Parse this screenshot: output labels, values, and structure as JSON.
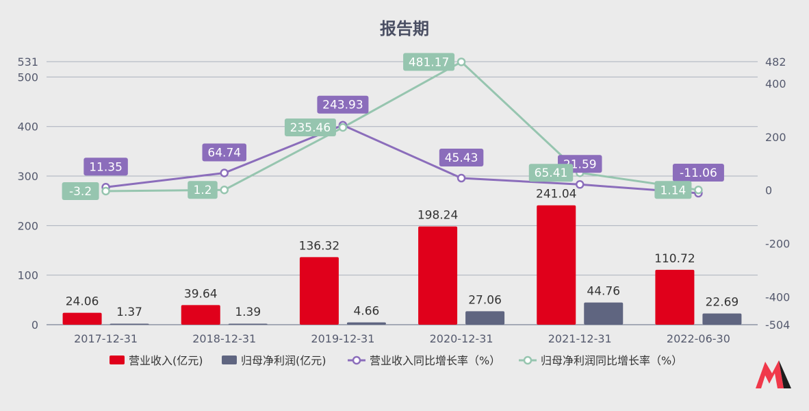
{
  "chart_data": {
    "type": "bar",
    "title": "报告期",
    "categories": [
      "2017-12-31",
      "2018-12-31",
      "2019-12-31",
      "2020-12-31",
      "2021-12-31",
      "2022-06-30"
    ],
    "left_axis": {
      "ticks": [
        "0",
        "100",
        "200",
        "300",
        "400",
        "500",
        "531"
      ],
      "ylim": [
        0,
        531
      ]
    },
    "right_axis": {
      "ticks": [
        "-504",
        "-400",
        "-200",
        "0",
        "200",
        "400",
        "482"
      ],
      "ylim": [
        -504,
        482
      ]
    },
    "series": [
      {
        "name": "营业收入(亿元)",
        "kind": "bar",
        "axis": "left",
        "color": "#e0001b",
        "values": [
          24.06,
          39.64,
          136.32,
          198.24,
          241.04,
          110.72
        ],
        "labels": [
          "24.06",
          "39.64",
          "136.32",
          "198.24",
          "241.04",
          "110.72"
        ]
      },
      {
        "name": "归母净利润(亿元)",
        "kind": "bar",
        "axis": "left",
        "color": "#5f6580",
        "values": [
          1.37,
          1.39,
          4.66,
          27.06,
          44.76,
          22.69
        ],
        "labels": [
          "1.37",
          "1.39",
          "4.66",
          "27.06",
          "44.76",
          "22.69"
        ]
      },
      {
        "name": "营业收入同比增长率（%）",
        "kind": "line",
        "axis": "right",
        "color": "#8b6dbb",
        "values": [
          11.35,
          64.74,
          243.93,
          45.43,
          21.59,
          -11.06
        ],
        "labels": [
          "11.35",
          "64.74",
          "243.93",
          "45.43",
          "21.59",
          "-11.06"
        ]
      },
      {
        "name": "归母净利润同比增长率（%）",
        "kind": "line",
        "axis": "right",
        "color": "#96c5af",
        "values": [
          -3.2,
          1.2,
          235.46,
          481.17,
          65.41,
          1.14
        ],
        "labels": [
          "-3.2",
          "1.2",
          "235.46",
          "481.17",
          "65.41",
          "1.14"
        ]
      }
    ],
    "grid": true,
    "legend_position": "bottom"
  },
  "logo": {
    "name": "brand-logo-m",
    "colors": [
      "#f0384a",
      "#1d1d1d"
    ]
  },
  "colors": {
    "background": "#ebebeb",
    "grid": "#aab0bd",
    "axis_text": "#555a6e"
  }
}
